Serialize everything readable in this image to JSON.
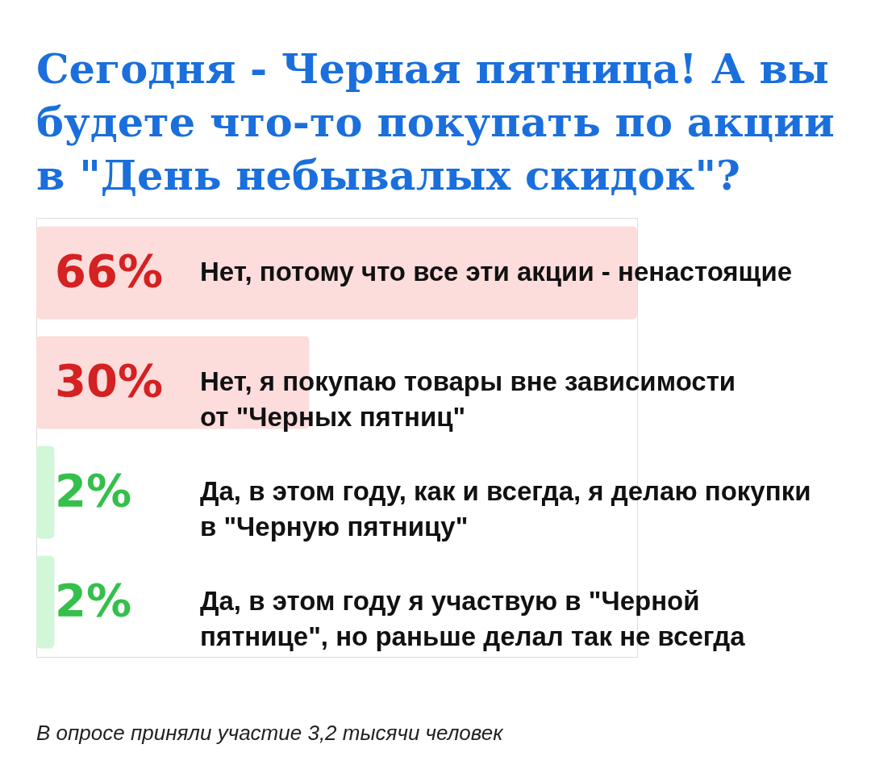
{
  "chart_data": {
    "type": "bar",
    "orientation": "horizontal",
    "title": "Сегодня - Черная пятница! А вы\nбудете что-то покупать по акции\nв \"День небывалых скидок\"?",
    "categories": [
      "Нет, потому что все эти акции - ненастоящие",
      "Нет, я покупаю товары вне зависимости\nот \"Черных пятниц\"",
      "Да, в этом году, как и всегда, я делаю покупки\nв \"Черную пятницу\"",
      "Да, в этом году я участвую в \"Черной\nпятнице\", но раньше делал так не всегда"
    ],
    "values": [
      66,
      30,
      2,
      2
    ],
    "colors": [
      "#fddcdc",
      "#fddcdc",
      "#d2f7d8",
      "#d2f7d8"
    ],
    "value_labels": [
      "66%",
      "30%",
      "2%",
      "2%"
    ],
    "annotations": [
      "В опросе приняли участие 3,2 тысячи человек"
    ]
  }
}
